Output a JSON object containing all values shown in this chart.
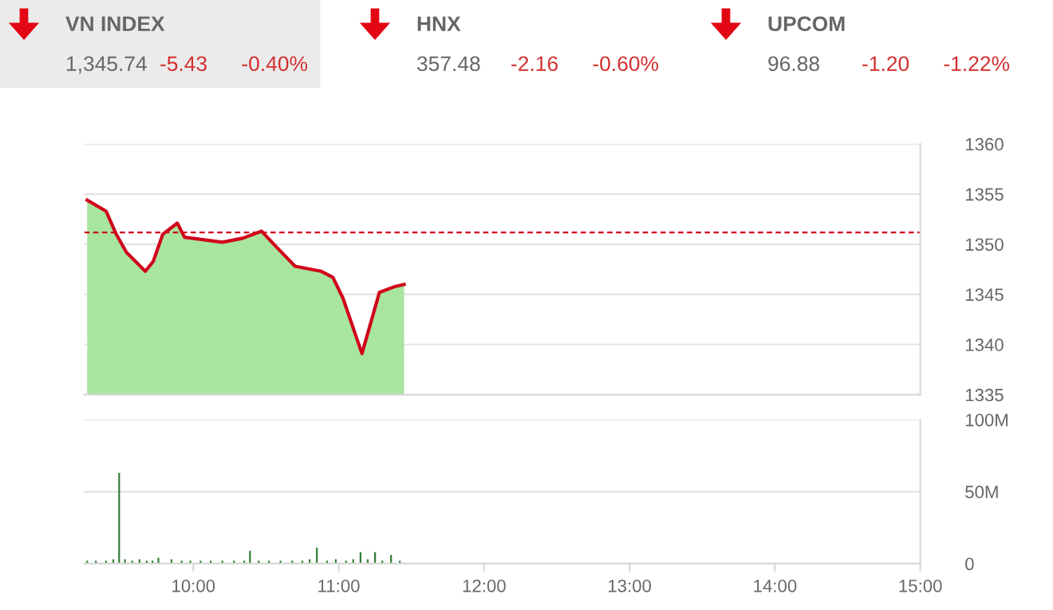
{
  "chart_data": [
    {
      "type": "other",
      "annotations": [
        "VN INDEX",
        "1,345.74",
        "-5.43",
        "-0.40%",
        "HNX",
        "357.48",
        "-2.16",
        "-0.60%",
        "UPCOM",
        "96.88",
        "-1.20",
        "-1.22%"
      ]
    },
    {
      "type": "area",
      "x": [
        9.27,
        9.4,
        9.47,
        9.54,
        9.67,
        9.725,
        9.79,
        9.89,
        9.94,
        10.2,
        10.34,
        10.47,
        10.56,
        10.7,
        10.88,
        10.96,
        11.03,
        11.16,
        11.28,
        11.39,
        11.45
      ],
      "series": [
        {
          "type": "area",
          "color": "#a8e6a0",
          "values": [
            1354.4,
            1353.3,
            1351.0,
            1349.2,
            1347.3,
            1348.3,
            1351.0,
            1352.1,
            1350.7,
            1350.2,
            1350.6,
            1351.3,
            1349.9,
            1347.8,
            1347.3,
            1346.7,
            1344.6,
            1339.1,
            1345.2,
            1345.8,
            1346.0
          ]
        },
        {
          "type": "line",
          "color": "#d0021b",
          "values": [
            1354.4,
            1353.3,
            1351.0,
            1349.2,
            1347.3,
            1348.3,
            1351.0,
            1352.1,
            1350.7,
            1350.2,
            1350.6,
            1351.3,
            1349.9,
            1347.8,
            1347.3,
            1346.7,
            1344.6,
            1339.1,
            1345.2,
            1345.8,
            1346.0
          ]
        }
      ],
      "xlim": [
        9.25,
        15
      ],
      "ylim": [
        1335,
        1360
      ],
      "yticks": [
        1335,
        1340,
        1345,
        1350,
        1355,
        1360
      ],
      "ref_lines": [
        {
          "axis": "y",
          "value": 1351.17,
          "color": "#d0021b",
          "line_style": "dashed"
        }
      ],
      "grid": "y",
      "tick_labels": "y"
    },
    {
      "type": "bar",
      "x": [
        9.27,
        9.33,
        9.4,
        9.45,
        9.49,
        9.53,
        9.58,
        9.63,
        9.68,
        9.72,
        9.76,
        9.85,
        9.92,
        9.98,
        10.05,
        10.12,
        10.2,
        10.28,
        10.35,
        10.39,
        10.45,
        10.52,
        10.6,
        10.68,
        10.75,
        10.8,
        10.85,
        10.92,
        10.98,
        11.05,
        11.1,
        11.15,
        11.2,
        11.25,
        11.3,
        11.36,
        11.42
      ],
      "series": [
        {
          "color": "#2e7d32",
          "values": [
            2,
            2,
            2,
            3,
            63,
            3,
            2,
            3,
            2,
            2,
            4,
            3,
            2,
            2,
            2,
            2,
            2,
            2,
            2,
            9,
            2,
            2,
            2,
            2,
            2,
            3,
            11,
            2,
            3,
            2,
            3,
            8,
            3,
            8,
            2,
            6,
            2
          ]
        }
      ],
      "xlim": [
        9.25,
        15
      ],
      "ylim": [
        0,
        100
      ],
      "xticks": [
        {
          "value": 10,
          "label": "10:00"
        },
        {
          "value": 11,
          "label": "11:00"
        },
        {
          "value": 12,
          "label": "12:00"
        },
        {
          "value": 13,
          "label": "13:00"
        },
        {
          "value": 14,
          "label": "14:00"
        },
        {
          "value": 15,
          "label": "15:00"
        }
      ],
      "yticks": [
        {
          "value": 0,
          "label": "0"
        },
        {
          "value": 50,
          "label": "50M"
        },
        {
          "value": 100,
          "label": "100M"
        }
      ],
      "grid": "y"
    }
  ]
}
